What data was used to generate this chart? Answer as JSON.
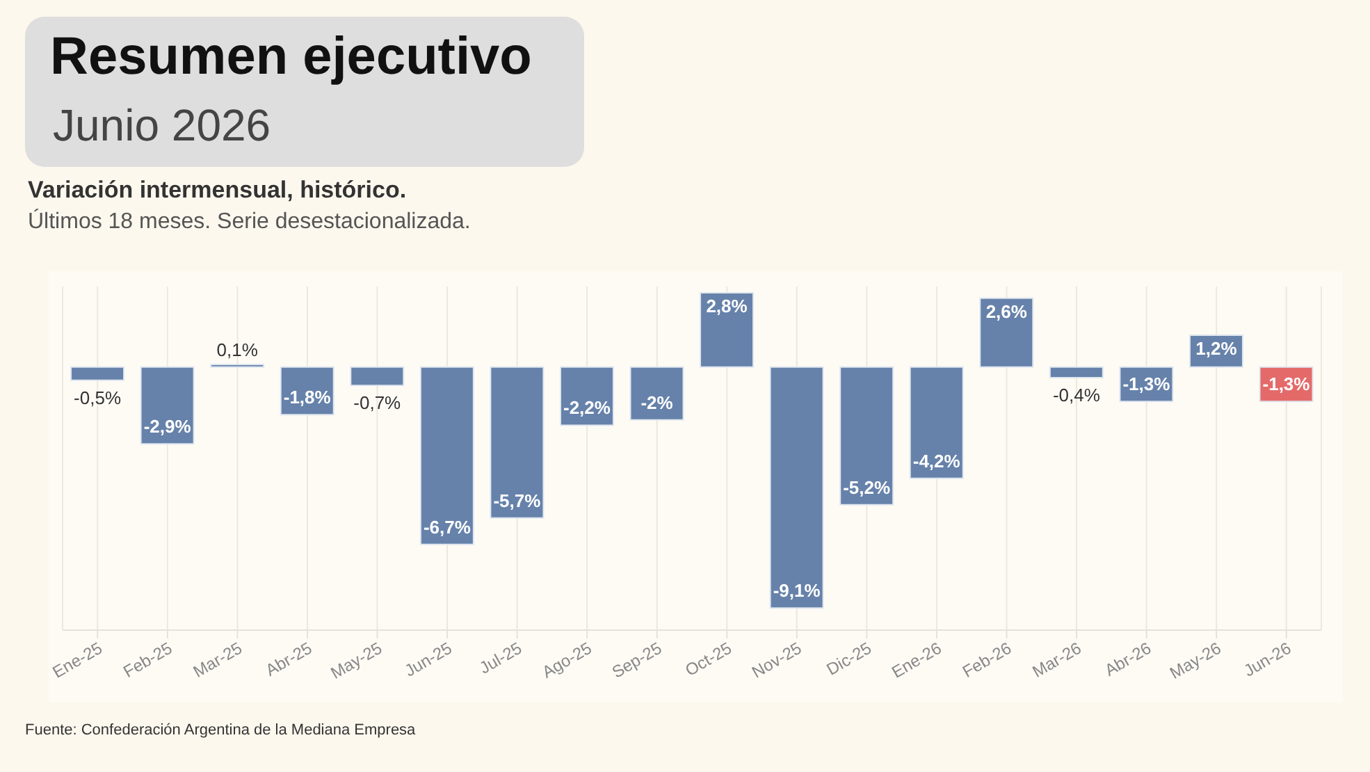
{
  "chart_data": {
    "type": "bar",
    "title": "Resumen ejecutivo",
    "subtitle": "Junio 2026",
    "annotations": [
      "Variación intermensual, histórico.",
      "Últimos 18 meses. Serie desestacionalizada.",
      "Fuente: Confederación Argentina de la Mediana Empresa"
    ],
    "categories": [
      "Ene-25",
      "Feb-25",
      "Mar-25",
      "Abr-25",
      "May-25",
      "Jun-25",
      "Jul-25",
      "Ago-25",
      "Sep-25",
      "Oct-25",
      "Nov-25",
      "Dic-25",
      "Ene-26",
      "Feb-26",
      "Mar-26",
      "Abr-26",
      "May-26",
      "Jun-26"
    ],
    "values": [
      -0.5,
      -2.9,
      0.1,
      -1.8,
      -0.7,
      -6.7,
      -5.7,
      -2.2,
      -2,
      2.8,
      -9.1,
      -5.2,
      -4.2,
      2.6,
      -0.4,
      -1.3,
      1.2,
      -1.3
    ],
    "value_labels": [
      "-0,5%",
      "-2,9%",
      "0,1%",
      "-1,8%",
      "-0,7%",
      "-6,7%",
      "-5,7%",
      "-2,2%",
      "-2%",
      "2,8%",
      "-9,1%",
      "-5,2%",
      "-4,2%",
      "2,6%",
      "-0,4%",
      "-1,3%",
      "1,2%",
      "-1,3%"
    ],
    "colors": [
      "#6682aa",
      "#6682aa",
      "#6682aa",
      "#6682aa",
      "#6682aa",
      "#6682aa",
      "#6682aa",
      "#6682aa",
      "#6682aa",
      "#6682aa",
      "#6682aa",
      "#6682aa",
      "#6682aa",
      "#6682aa",
      "#6682aa",
      "#6682aa",
      "#6682aa",
      "#e46a6a"
    ],
    "grid": "x",
    "legend": false
  }
}
